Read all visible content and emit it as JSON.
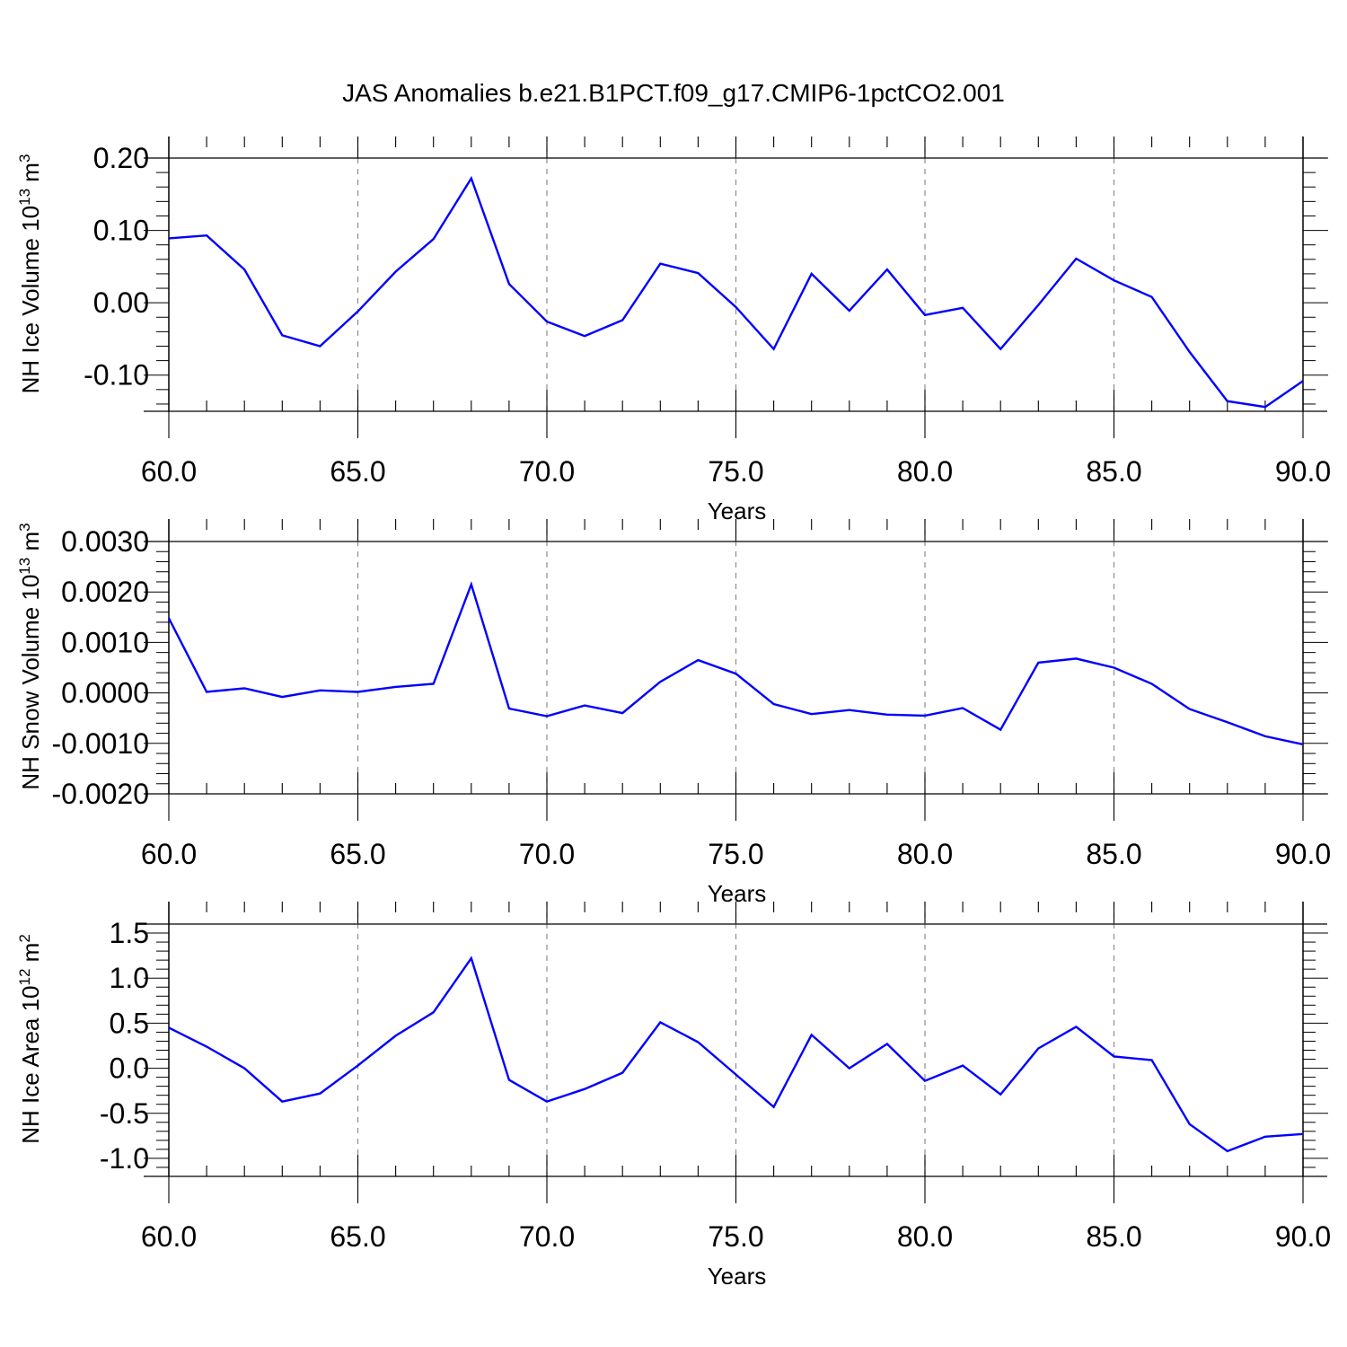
{
  "title": "JAS Anomalies b.e21.B1PCT.f09_g17.CMIP6-1pctCO2.001",
  "colors": {
    "line": "#0000ff",
    "frame": "#000000",
    "grid": "#8c8c8c"
  },
  "chart_data": [
    {
      "type": "line",
      "xlabel": "Years",
      "ylabel_text": "NH Ice Volume 10",
      "ylabel_exp": "13",
      "ylabel_unit": " m",
      "ylabel_unit_exp": "3",
      "xlim": [
        60,
        90
      ],
      "ylim": [
        -0.15,
        0.2
      ],
      "xticks": [
        60,
        65,
        70,
        75,
        80,
        85,
        90
      ],
      "xtick_labels": [
        "60.0",
        "65.0",
        "70.0",
        "75.0",
        "80.0",
        "85.0",
        "90.0"
      ],
      "yticks": [
        0.2,
        0.1,
        0.0,
        -0.1
      ],
      "ytick_labels": [
        "0.20",
        "0.10",
        "0.00",
        "-0.10"
      ],
      "grid": "vertical dashed at major x ticks",
      "x": [
        60,
        61,
        62,
        63,
        64,
        65,
        66,
        67,
        68,
        69,
        70,
        71,
        72,
        73,
        74,
        75,
        76,
        77,
        78,
        79,
        80,
        81,
        82,
        83,
        84,
        85,
        86,
        87,
        88,
        89,
        90
      ],
      "values": [
        0.089,
        0.093,
        0.046,
        -0.045,
        -0.06,
        -0.012,
        0.043,
        0.088,
        0.172,
        0.026,
        -0.026,
        -0.046,
        -0.024,
        0.054,
        0.041,
        -0.006,
        -0.064,
        0.04,
        -0.011,
        0.046,
        -0.017,
        -0.007,
        -0.064,
        -0.003,
        0.061,
        0.031,
        0.008,
        -0.068,
        -0.136,
        -0.144,
        -0.108
      ]
    },
    {
      "type": "line",
      "xlabel": "Years",
      "ylabel_text": "NH Snow Volume 10",
      "ylabel_exp": "13",
      "ylabel_unit": " m",
      "ylabel_unit_exp": "3",
      "xlim": [
        60,
        90
      ],
      "ylim": [
        -0.002,
        0.003
      ],
      "xticks": [
        60,
        65,
        70,
        75,
        80,
        85,
        90
      ],
      "xtick_labels": [
        "60.0",
        "65.0",
        "70.0",
        "75.0",
        "80.0",
        "85.0",
        "90.0"
      ],
      "yticks": [
        0.003,
        0.002,
        0.001,
        0.0,
        -0.001,
        -0.002
      ],
      "ytick_labels": [
        "0.0030",
        "0.0020",
        "0.0010",
        "0.0000",
        "-0.0010",
        "-0.0020"
      ],
      "grid": "vertical dashed at major x ticks",
      "x": [
        60,
        61,
        62,
        63,
        64,
        65,
        66,
        67,
        68,
        69,
        70,
        71,
        72,
        73,
        74,
        75,
        76,
        77,
        78,
        79,
        80,
        81,
        82,
        83,
        84,
        85,
        86,
        87,
        88,
        89,
        90
      ],
      "values": [
        0.00148,
        2e-05,
        9e-05,
        -8e-05,
        5e-05,
        2e-05,
        0.00012,
        0.00018,
        0.00215,
        -0.00031,
        -0.00046,
        -0.00025,
        -0.0004,
        0.00022,
        0.00065,
        0.00038,
        -0.00022,
        -0.00042,
        -0.00034,
        -0.00043,
        -0.00045,
        -0.0003,
        -0.00073,
        0.0006,
        0.00068,
        0.0005,
        0.00018,
        -0.00032,
        -0.00058,
        -0.00086,
        -0.00102
      ]
    },
    {
      "type": "line",
      "xlabel": "Years",
      "ylabel_text": "NH Ice Area 10",
      "ylabel_exp": "12",
      "ylabel_unit": " m",
      "ylabel_unit_exp": "2",
      "xlim": [
        60,
        90
      ],
      "ylim": [
        -1.2,
        1.6
      ],
      "xticks": [
        60,
        65,
        70,
        75,
        80,
        85,
        90
      ],
      "xtick_labels": [
        "60.0",
        "65.0",
        "70.0",
        "75.0",
        "80.0",
        "85.0",
        "90.0"
      ],
      "yticks": [
        1.5,
        1.0,
        0.5,
        0.0,
        -0.5,
        -1.0
      ],
      "ytick_labels": [
        "1.5",
        "1.0",
        "0.5",
        "0.0",
        "-0.5",
        "-1.0"
      ],
      "grid": "vertical dashed at major x ticks",
      "x": [
        60,
        61,
        62,
        63,
        64,
        65,
        66,
        67,
        68,
        69,
        70,
        71,
        72,
        73,
        74,
        75,
        76,
        77,
        78,
        79,
        80,
        81,
        82,
        83,
        84,
        85,
        86,
        87,
        88,
        89,
        90
      ],
      "values": [
        0.45,
        0.24,
        0.0,
        -0.37,
        -0.28,
        0.03,
        0.36,
        0.62,
        1.22,
        -0.13,
        -0.37,
        -0.23,
        -0.05,
        0.51,
        0.29,
        -0.07,
        -0.43,
        0.37,
        0.0,
        0.27,
        -0.14,
        0.03,
        -0.29,
        0.22,
        0.46,
        0.13,
        0.09,
        -0.62,
        -0.92,
        -0.76,
        -0.73
      ]
    }
  ]
}
